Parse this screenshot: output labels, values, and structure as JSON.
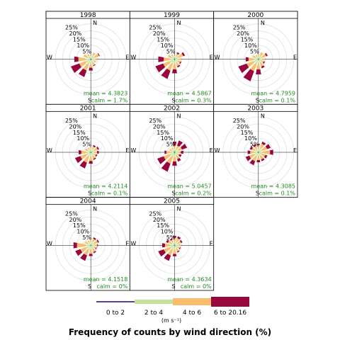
{
  "chart_data": {
    "type": "windrose",
    "title": "Frequency of counts by wind direction (%)",
    "ring_labels": [
      "5%",
      "10%",
      "15%",
      "20%",
      "25%"
    ],
    "ring_values": [
      5,
      10,
      15,
      20,
      25
    ],
    "direction_labels": {
      "N": "N",
      "E": "E",
      "S": "S",
      "W": "W"
    },
    "directions_deg": [
      0,
      30,
      60,
      90,
      120,
      150,
      180,
      210,
      240,
      270,
      300,
      330
    ],
    "speed_bins": [
      {
        "name": "0 to 2",
        "color": "#5b3f9a"
      },
      {
        "name": "2 to 4",
        "color": "#c3e39a"
      },
      {
        "name": "4 to 6",
        "color": "#f9bd6b"
      },
      {
        "name": "6 to 20.16",
        "color": "#99063e"
      }
    ],
    "unit_label": "(m s⁻¹)",
    "panels": [
      {
        "year": "1998",
        "mean": "mean = 4.3823",
        "calm": "calm = 1.7%",
        "bins": [
          [
            0.4,
            2.4,
            0,
            0
          ],
          [
            0.4,
            2.7,
            1.9,
            0
          ],
          [
            0.4,
            3.0,
            2.9,
            0.5
          ],
          [
            0.4,
            2.5,
            1.7,
            0
          ],
          [
            0.4,
            2.4,
            1.2,
            0
          ],
          [
            0.4,
            2.5,
            1.8,
            0.5
          ],
          [
            0.4,
            2.8,
            2.9,
            2.0
          ],
          [
            0.4,
            3.4,
            4.7,
            4.9
          ],
          [
            0.4,
            3.6,
            4.7,
            6.3
          ],
          [
            0.4,
            3.7,
            4.8,
            2.9
          ],
          [
            0.4,
            2.2,
            3.0,
            0
          ],
          [
            0.4,
            2.2,
            1.4,
            0
          ]
        ]
      },
      {
        "year": "1999",
        "mean": "mean = 4.5867",
        "calm": "calm = 0.3%",
        "bins": [
          [
            0.3,
            2.4,
            0,
            0
          ],
          [
            0.3,
            2.2,
            1.8,
            1.0
          ],
          [
            0.3,
            2.9,
            3.3,
            1.3
          ],
          [
            0.3,
            2.4,
            2.2,
            0
          ],
          [
            0.3,
            2.2,
            1.9,
            0.7
          ],
          [
            0.3,
            2.5,
            2.4,
            1.0
          ],
          [
            0.3,
            2.9,
            4.0,
            2.8
          ],
          [
            0.3,
            3.4,
            4.9,
            6.2
          ],
          [
            0.3,
            3.5,
            4.9,
            5.8
          ],
          [
            0.3,
            3.1,
            4.4,
            3.9
          ],
          [
            0.3,
            2.2,
            2.4,
            0
          ],
          [
            0.3,
            2.2,
            1.4,
            0
          ]
        ]
      },
      {
        "year": "2000",
        "mean": "mean = 4.7959",
        "calm": "calm = 0.1%",
        "bins": [
          [
            0.3,
            2.1,
            1.3,
            0
          ],
          [
            0.3,
            2.8,
            2.2,
            0
          ],
          [
            0.3,
            2.9,
            2.8,
            1.0
          ],
          [
            0.3,
            2.5,
            1.9,
            0
          ],
          [
            0.3,
            2.4,
            1.4,
            0.8
          ],
          [
            0.3,
            2.5,
            2.8,
            1.3
          ],
          [
            0.3,
            3.0,
            3.9,
            3.6
          ],
          [
            0.3,
            3.4,
            5.3,
            7.6
          ],
          [
            0.3,
            3.6,
            5.0,
            6.2
          ],
          [
            0.3,
            3.0,
            3.8,
            2.0
          ],
          [
            0.3,
            2.2,
            2.1,
            0
          ],
          [
            0.3,
            2.0,
            1.1,
            0
          ]
        ]
      },
      {
        "year": "2001",
        "mean": "mean = 4.2114",
        "calm": "calm = 0.1%",
        "bins": [
          [
            0.3,
            2.4,
            1.3,
            0
          ],
          [
            0.3,
            2.6,
            1.6,
            1.0
          ],
          [
            0.3,
            2.7,
            2.3,
            1.0
          ],
          [
            0.3,
            2.2,
            2.0,
            1.2
          ],
          [
            0.3,
            2.2,
            1.6,
            0.8
          ],
          [
            0.3,
            2.4,
            2.3,
            0.8
          ],
          [
            0.3,
            2.9,
            3.0,
            2.0
          ],
          [
            0.3,
            3.3,
            4.3,
            4.3
          ],
          [
            0.3,
            3.4,
            4.2,
            4.0
          ],
          [
            0.3,
            2.9,
            3.6,
            1.9
          ],
          [
            0.3,
            2.2,
            1.9,
            0
          ],
          [
            0.3,
            2.2,
            1.1,
            0
          ]
        ]
      },
      {
        "year": "2002",
        "mean": "mean = 5.0457",
        "calm": "calm = 0.2%",
        "bins": [
          [
            0.3,
            2.4,
            2.2,
            2.7
          ],
          [
            0.3,
            2.4,
            2.4,
            3.9
          ],
          [
            0.3,
            2.7,
            2.6,
            3.8
          ],
          [
            0.3,
            2.5,
            1.6,
            1.9
          ],
          [
            0.3,
            2.2,
            1.2,
            1.6
          ],
          [
            0.3,
            2.5,
            2.4,
            1.9
          ],
          [
            0.3,
            2.9,
            3.4,
            3.0
          ],
          [
            0.3,
            3.4,
            4.9,
            6.0
          ],
          [
            0.3,
            3.4,
            4.6,
            4.8
          ],
          [
            0.3,
            2.9,
            2.7,
            1.3
          ],
          [
            0.3,
            2.1,
            1.6,
            0
          ],
          [
            0.3,
            2.1,
            1.3,
            0
          ]
        ]
      },
      {
        "year": "2003",
        "mean": "mean = 4.3085",
        "calm": "calm = 0.1%",
        "bins": [
          [
            0.3,
            2.4,
            2.6,
            0.8
          ],
          [
            0.3,
            2.6,
            3.6,
            1.6
          ],
          [
            0.3,
            2.7,
            3.6,
            2.6
          ],
          [
            0.3,
            2.5,
            5.5,
            2.3
          ],
          [
            0.3,
            2.2,
            2.8,
            1.5
          ],
          [
            0.3,
            2.4,
            2.8,
            1.3
          ],
          [
            0.3,
            2.7,
            2.6,
            1.6
          ],
          [
            0.3,
            3.0,
            3.5,
            2.9
          ],
          [
            0.3,
            3.1,
            3.5,
            2.8
          ],
          [
            0.3,
            2.6,
            3.0,
            1.8
          ],
          [
            0.3,
            2.2,
            2.6,
            1.5
          ],
          [
            0.3,
            2.2,
            2.3,
            1.3
          ]
        ]
      },
      {
        "year": "2004",
        "mean": "mean = 4.1518",
        "calm": "calm = 0%",
        "bins": [
          [
            0.3,
            2.4,
            1.9,
            0
          ],
          [
            0.3,
            2.5,
            2.2,
            1.0
          ],
          [
            0.3,
            2.7,
            2.4,
            0.9
          ],
          [
            0.3,
            2.4,
            1.9,
            0.5
          ],
          [
            0.3,
            2.2,
            1.6,
            0.5
          ],
          [
            0.3,
            2.5,
            2.4,
            0.8
          ],
          [
            0.3,
            2.9,
            2.9,
            1.6
          ],
          [
            0.3,
            3.2,
            4.2,
            4.0
          ],
          [
            0.3,
            3.4,
            4.2,
            3.8
          ],
          [
            0.3,
            3.4,
            6.2,
            2.5
          ],
          [
            0.3,
            2.2,
            2.0,
            0
          ],
          [
            0.3,
            2.1,
            1.3,
            0
          ]
        ]
      },
      {
        "year": "2005",
        "mean": "mean = 4.3634",
        "calm": "calm = 0%",
        "bins": [
          [
            0.3,
            2.4,
            2.6,
            1.5
          ],
          [
            0.3,
            2.5,
            2.6,
            1.4
          ],
          [
            0.3,
            2.6,
            2.0,
            1.0
          ],
          [
            0.3,
            2.4,
            1.5,
            0
          ],
          [
            0.3,
            2.2,
            1.6,
            0.5
          ],
          [
            0.3,
            2.5,
            2.0,
            0.7
          ],
          [
            0.3,
            2.9,
            3.0,
            1.6
          ],
          [
            0.3,
            3.3,
            4.2,
            4.0
          ],
          [
            0.3,
            3.5,
            4.4,
            4.2
          ],
          [
            0.3,
            3.0,
            3.6,
            2.0
          ],
          [
            0.3,
            2.4,
            2.4,
            1.4
          ],
          [
            0.3,
            2.4,
            1.6,
            1.0
          ]
        ]
      }
    ]
  }
}
